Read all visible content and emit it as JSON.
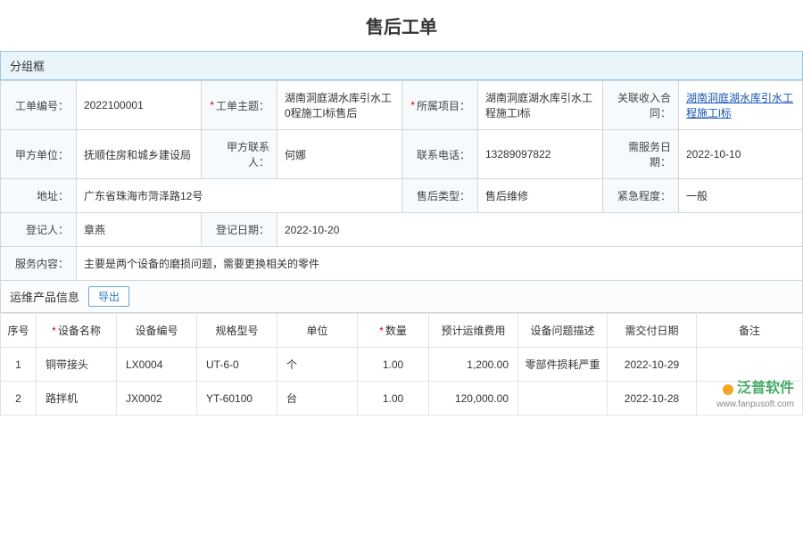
{
  "page": {
    "title": "售后工单"
  },
  "section": {
    "group_title": "分组框"
  },
  "form": {
    "row1": {
      "order_no_label": "工单编号：",
      "order_no": "2022100001",
      "subject_label": "工单主题：",
      "subject": "湖南洞庭湖水库引水工0程施工l标售后",
      "project_label": "所属项目：",
      "project": "湖南洞庭湖水库引水工程施工l标",
      "contract_label": "关联收入合同：",
      "contract": "湖南洞庭湖水库引水工程施工l标"
    },
    "row2": {
      "party_label": "甲方单位：",
      "party": "抚顺住房和城乡建设局",
      "contact_label": "甲方联系人：",
      "contact": "何娜",
      "phone_label": "联系电话：",
      "phone": "13289097822",
      "service_date_label": "需服务日期：",
      "service_date": "2022-10-10"
    },
    "row3": {
      "address_label": "地址：",
      "address": "广东省珠海市菏泽路12号",
      "after_type_label": "售后类型：",
      "after_type": "售后维修",
      "urgency_label": "紧急程度：",
      "urgency": "一般"
    },
    "row4": {
      "registrant_label": "登记人：",
      "registrant": "章燕",
      "reg_date_label": "登记日期：",
      "reg_date": "2022-10-20"
    },
    "row5": {
      "content_label": "服务内容：",
      "content": "主要是两个设备的磨损问题，需要更换相关的零件"
    }
  },
  "subsection": {
    "title": "运维产品信息",
    "export_btn": "导出"
  },
  "table": {
    "columns": {
      "seq": "序号",
      "name": "设备名称",
      "code": "设备编号",
      "spec": "规格型号",
      "unit": "单位",
      "qty": "数量",
      "est_cost": "预计运维费用",
      "issue": "设备问题描述",
      "due": "需交付日期",
      "remark": "备注"
    },
    "rows": [
      {
        "seq": "1",
        "name": "铜带接头",
        "code": "LX0004",
        "spec": "UT-6-0",
        "unit": "个",
        "qty": "1.00",
        "est_cost": "1,200.00",
        "issue": "零部件损耗严重",
        "due": "2022-10-29",
        "remark": ""
      },
      {
        "seq": "2",
        "name": "路拌机",
        "code": "JX0002",
        "spec": "YT-60100",
        "unit": "台",
        "qty": "1.00",
        "est_cost": "120,000.00",
        "issue": "",
        "due": "2022-10-28",
        "remark": ""
      }
    ]
  },
  "watermark": {
    "brand": "泛普软件",
    "url": "www.fanpusoft.com"
  }
}
